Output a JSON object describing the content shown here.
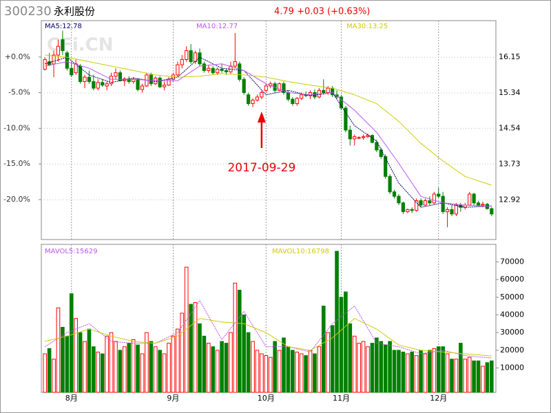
{
  "header": {
    "code": "300230",
    "name": "永利股份",
    "quote": "4.79 +0.03 (+0.63%)"
  },
  "chart_data": [
    {
      "type": "candlestick",
      "watermark": "CFi.CN",
      "annotation": "2017-09-29",
      "annotation_index": 49,
      "up_color": "#ff0000",
      "down_color": "#008000",
      "xlim": [
        -0.5,
        101.5
      ],
      "ylim": [
        12.02,
        16.98
      ],
      "yticks": [
        16.15,
        15.34,
        14.54,
        13.73,
        12.92
      ],
      "y2lim": [
        -25.6,
        5.1
      ],
      "y2ticks": [
        {
          "value": 0,
          "label": "+0.0%"
        },
        {
          "value": -5,
          "label": "-5.0%"
        },
        {
          "value": -10,
          "label": "-10.0%"
        },
        {
          "value": -15,
          "label": "-15.0%"
        },
        {
          "value": -20,
          "label": "-20.0%"
        }
      ],
      "grid": true,
      "open": [
        15.88,
        16.05,
        16.0,
        16.2,
        16.55,
        16.25,
        15.9,
        15.8,
        15.95,
        15.6,
        15.7,
        15.6,
        15.45,
        15.58,
        15.5,
        15.55,
        15.72,
        15.8,
        15.62,
        15.66,
        15.6,
        15.65,
        15.42,
        15.5,
        15.75,
        15.55,
        15.68,
        15.48,
        15.52,
        15.65,
        15.75,
        15.98,
        16.1,
        16.3,
        16.05,
        16.25,
        16.0,
        15.85,
        15.9,
        15.8,
        15.88,
        15.85,
        15.82,
        15.95,
        16.0,
        15.65,
        15.3,
        15.1,
        15.18,
        15.25,
        15.4,
        15.5,
        15.55,
        15.4,
        15.55,
        15.35,
        15.2,
        15.1,
        15.22,
        15.3,
        15.28,
        15.35,
        15.25,
        15.4,
        15.35,
        15.45,
        15.3,
        15.25,
        15.0,
        14.5,
        14.3,
        14.32,
        14.33,
        14.35,
        14.38,
        14.22,
        14.05,
        13.9,
        13.45,
        13.1,
        13.0,
        12.85,
        12.65,
        12.7,
        12.68,
        12.9,
        12.8,
        12.9,
        12.85,
        13.05,
        13.0,
        12.65,
        12.7,
        12.6,
        12.8,
        12.75,
        12.8,
        13.05,
        12.85,
        12.8,
        12.82,
        12.72
      ],
      "high": [
        16.15,
        16.25,
        16.3,
        16.55,
        16.75,
        16.3,
        16.05,
        16.1,
        16.0,
        15.75,
        15.85,
        15.75,
        15.65,
        15.66,
        15.6,
        15.8,
        15.9,
        15.85,
        15.7,
        15.72,
        15.7,
        15.68,
        15.55,
        15.8,
        15.8,
        15.72,
        15.72,
        15.6,
        15.7,
        15.8,
        16.05,
        16.2,
        16.4,
        16.45,
        16.3,
        16.35,
        16.05,
        15.98,
        15.95,
        15.92,
        16.0,
        15.9,
        16.05,
        16.7,
        16.05,
        15.7,
        15.35,
        15.22,
        15.3,
        15.4,
        15.55,
        15.6,
        15.6,
        15.58,
        15.6,
        15.4,
        15.25,
        15.25,
        15.35,
        15.38,
        15.4,
        15.42,
        15.45,
        15.65,
        15.5,
        15.5,
        15.4,
        15.3,
        15.05,
        14.6,
        14.4,
        14.36,
        14.4,
        14.42,
        14.4,
        14.28,
        14.1,
        13.95,
        13.5,
        13.15,
        13.05,
        12.88,
        12.72,
        12.75,
        12.95,
        12.95,
        12.95,
        13.0,
        13.1,
        13.2,
        13.1,
        12.75,
        12.8,
        12.85,
        12.85,
        12.85,
        13.1,
        13.08,
        12.9,
        12.88,
        12.85,
        12.75
      ],
      "low": [
        15.85,
        15.95,
        15.7,
        16.05,
        16.2,
        15.85,
        15.7,
        15.75,
        15.55,
        15.45,
        15.55,
        15.4,
        15.4,
        15.48,
        15.4,
        15.5,
        15.65,
        15.6,
        15.5,
        15.55,
        15.55,
        15.38,
        15.35,
        15.48,
        15.5,
        15.52,
        15.45,
        15.4,
        15.5,
        15.6,
        15.7,
        15.9,
        16.05,
        16.0,
        16.0,
        15.95,
        15.8,
        15.8,
        15.75,
        15.75,
        15.8,
        15.75,
        15.78,
        15.9,
        15.6,
        15.3,
        15.05,
        15.02,
        15.15,
        15.2,
        15.35,
        15.45,
        15.35,
        15.38,
        15.3,
        15.15,
        15.05,
        15.05,
        15.18,
        15.25,
        15.2,
        15.2,
        15.22,
        15.3,
        15.3,
        15.25,
        15.2,
        14.95,
        14.45,
        14.15,
        14.15,
        14.3,
        14.28,
        14.32,
        14.2,
        14.0,
        13.85,
        13.4,
        13.05,
        12.95,
        12.8,
        12.6,
        12.62,
        12.62,
        12.65,
        12.75,
        12.78,
        12.8,
        12.82,
        12.95,
        12.6,
        12.3,
        12.55,
        12.55,
        12.65,
        12.7,
        12.78,
        12.8,
        12.78,
        12.75,
        12.7,
        12.55
      ],
      "close": [
        16.1,
        15.98,
        16.2,
        16.4,
        16.3,
        15.9,
        15.75,
        16.0,
        15.6,
        15.7,
        15.6,
        15.45,
        15.58,
        15.52,
        15.55,
        15.72,
        15.8,
        15.62,
        15.66,
        15.6,
        15.65,
        15.42,
        15.5,
        15.75,
        15.55,
        15.68,
        15.48,
        15.52,
        15.65,
        15.75,
        15.98,
        16.1,
        16.3,
        16.05,
        16.25,
        16.0,
        15.85,
        15.9,
        15.8,
        15.88,
        15.85,
        15.82,
        15.95,
        16.05,
        15.65,
        15.35,
        15.1,
        15.18,
        15.25,
        15.35,
        15.5,
        15.55,
        15.4,
        15.55,
        15.35,
        15.2,
        15.1,
        15.22,
        15.3,
        15.28,
        15.35,
        15.25,
        15.4,
        15.35,
        15.45,
        15.3,
        15.25,
        15.0,
        14.5,
        14.3,
        14.35,
        14.33,
        14.35,
        14.38,
        14.22,
        14.05,
        13.9,
        13.45,
        13.1,
        13.0,
        12.85,
        12.65,
        12.7,
        12.68,
        12.9,
        12.8,
        12.9,
        12.85,
        13.05,
        13.0,
        12.65,
        12.7,
        12.6,
        12.8,
        12.75,
        12.8,
        13.05,
        12.85,
        12.8,
        12.82,
        12.72,
        12.6
      ],
      "ma": [
        {
          "name": "MA5:12.78",
          "color": "#000066",
          "x": [
            0,
            5,
            10,
            15,
            20,
            25,
            30,
            35,
            40,
            45,
            50,
            55,
            60,
            65,
            70,
            75,
            80,
            85,
            90,
            95,
            101
          ],
          "values": [
            16.0,
            16.15,
            15.75,
            15.58,
            15.68,
            15.6,
            15.7,
            16.15,
            15.9,
            15.85,
            15.3,
            15.4,
            15.28,
            15.35,
            14.6,
            14.25,
            13.3,
            12.75,
            12.85,
            12.75,
            12.78
          ]
        },
        {
          "name": "MA10:12.77",
          "color": "#bb55ee",
          "x": [
            0,
            5,
            10,
            15,
            20,
            25,
            30,
            35,
            40,
            45,
            50,
            55,
            60,
            65,
            70,
            75,
            80,
            85,
            90,
            95,
            101
          ],
          "values": [
            15.95,
            16.05,
            15.9,
            15.65,
            15.65,
            15.62,
            15.62,
            15.95,
            16.0,
            15.85,
            15.55,
            15.35,
            15.3,
            15.35,
            14.95,
            14.45,
            13.75,
            13.0,
            12.85,
            12.8,
            12.77
          ]
        },
        {
          "name": "MA30:13.25",
          "color": "#cccc00",
          "x": [
            0,
            5,
            10,
            15,
            20,
            25,
            30,
            35,
            40,
            45,
            50,
            55,
            60,
            65,
            70,
            75,
            80,
            85,
            90,
            95,
            101
          ],
          "values": [
            16.2,
            16.15,
            16.05,
            15.95,
            15.85,
            15.75,
            15.7,
            15.72,
            15.78,
            15.75,
            15.7,
            15.6,
            15.52,
            15.45,
            15.3,
            15.1,
            14.7,
            14.2,
            13.8,
            13.45,
            13.25
          ]
        }
      ]
    },
    {
      "type": "bar",
      "xlim": [
        -0.5,
        101.5
      ],
      "ylim": [
        -3800,
        79900
      ],
      "yticks": [
        70000,
        60000,
        50000,
        40000,
        30000,
        20000,
        10000
      ],
      "xticks": [
        {
          "value": 6,
          "label": "8月"
        },
        {
          "value": 29,
          "label": "9月"
        },
        {
          "value": 50,
          "label": "10月"
        },
        {
          "value": 67,
          "label": "11月"
        },
        {
          "value": 89,
          "label": "12月"
        }
      ],
      "values": [
        18000,
        21000,
        15000,
        44000,
        33000,
        28000,
        52000,
        38000,
        30000,
        25000,
        32000,
        22000,
        19000,
        18000,
        28000,
        30000,
        25000,
        20000,
        22000,
        24000,
        26000,
        23000,
        18000,
        30000,
        25000,
        22000,
        20000,
        18000,
        24000,
        28000,
        32000,
        41000,
        67000,
        46000,
        47000,
        35000,
        28000,
        24000,
        22000,
        20000,
        25000,
        24000,
        30000,
        58000,
        54000,
        40000,
        30000,
        25000,
        20000,
        18000,
        17000,
        16000,
        25000,
        20000,
        27000,
        22000,
        20000,
        19000,
        18000,
        17000,
        20000,
        18000,
        22000,
        45000,
        30000,
        34000,
        76000,
        50000,
        53000,
        35000,
        28000,
        24000,
        25000,
        22000,
        24000,
        27000,
        25000,
        23000,
        25000,
        20000,
        20000,
        19000,
        18000,
        19000,
        17000,
        20000,
        18000,
        20000,
        21000,
        22000,
        22000,
        18000,
        15000,
        15000,
        24000,
        15000,
        16000,
        14000,
        14000,
        11000,
        13000,
        14000
      ],
      "ma": [
        {
          "name": "MAVOL5:15629",
          "color": "#bb55ee",
          "x": [
            0,
            5,
            10,
            15,
            20,
            25,
            30,
            35,
            40,
            45,
            50,
            55,
            60,
            65,
            70,
            75,
            80,
            85,
            90,
            95,
            101
          ],
          "values": [
            22000,
            30000,
            35000,
            25000,
            24000,
            24000,
            30000,
            48000,
            26000,
            42000,
            22000,
            22000,
            19000,
            35000,
            45000,
            24000,
            22000,
            18000,
            20000,
            17000,
            15629
          ]
        },
        {
          "name": "MAVOL10:16798",
          "color": "#cccc00",
          "x": [
            0,
            5,
            10,
            15,
            20,
            25,
            30,
            35,
            40,
            45,
            50,
            55,
            60,
            65,
            70,
            75,
            80,
            85,
            90,
            95,
            101
          ],
          "values": [
            25000,
            28000,
            32000,
            28000,
            25000,
            24000,
            28000,
            38000,
            36000,
            35000,
            30000,
            22000,
            20000,
            27000,
            38000,
            32000,
            23000,
            20000,
            19000,
            18000,
            16798
          ]
        }
      ]
    }
  ]
}
